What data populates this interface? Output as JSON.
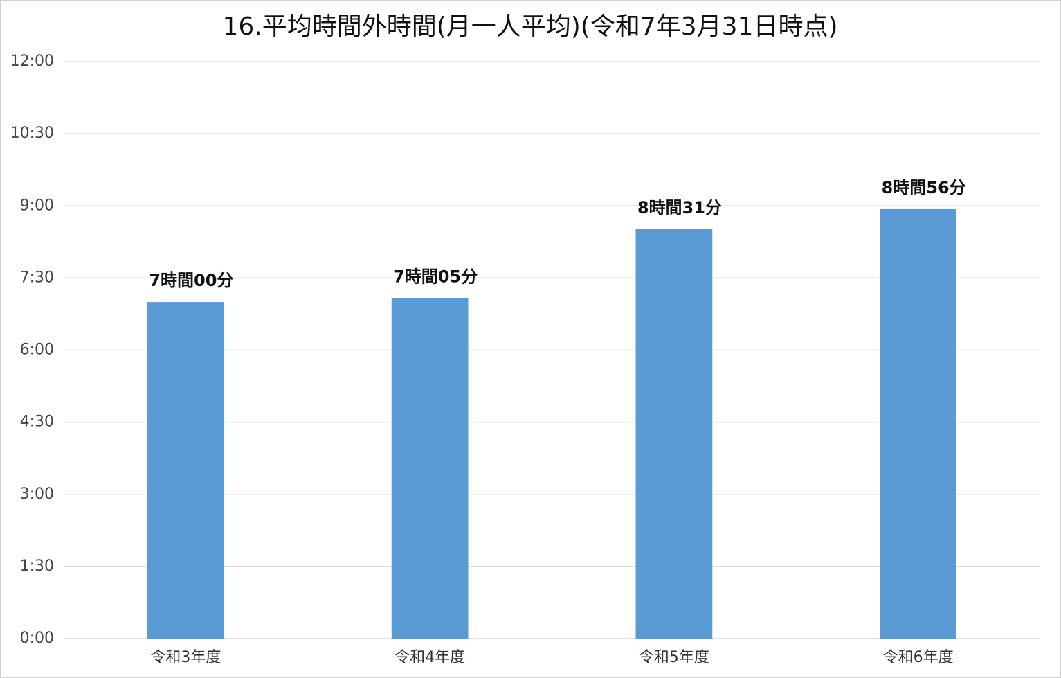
{
  "chart_data": {
    "type": "bar",
    "title": "16.平均時間外時間(月一人平均)(令和7年3月31日時点)",
    "categories": [
      "令和3年度",
      "令和4年度",
      "令和5年度",
      "令和6年度"
    ],
    "values": [
      420,
      425,
      511,
      536
    ],
    "value_labels": [
      "7時間00分",
      "7時間05分",
      "8時間31分",
      "8時間56分"
    ],
    "color": "#5b9bd5",
    "ylim": [
      0,
      720
    ],
    "yticks": [
      {
        "value": 0,
        "label": "0:00"
      },
      {
        "value": 90,
        "label": "1:30"
      },
      {
        "value": 180,
        "label": "3:00"
      },
      {
        "value": 270,
        "label": "4:30"
      },
      {
        "value": 360,
        "label": "6:00"
      },
      {
        "value": 450,
        "label": "7:30"
      },
      {
        "value": 540,
        "label": "9:00"
      },
      {
        "value": 630,
        "label": "10:30"
      },
      {
        "value": 720,
        "label": "12:00"
      }
    ],
    "grid": true
  }
}
